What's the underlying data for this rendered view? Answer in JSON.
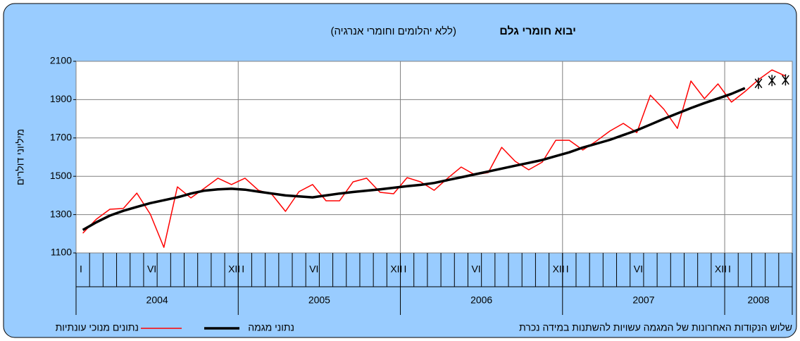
{
  "chart_data": {
    "type": "line",
    "title": "יבוא חומרי גלם",
    "subtitle": "(ללא יהלומים וחומרי אנרגיה)",
    "y_label": "מיליוני דולרים",
    "note": "שלוש הנקודות האחרונות של המגמה עשויות להשתנות במידה נכרת",
    "categories": [
      "I",
      null,
      null,
      null,
      null,
      "VI",
      null,
      null,
      null,
      null,
      null,
      "XII",
      "I",
      null,
      null,
      null,
      null,
      "VI",
      null,
      null,
      null,
      null,
      null,
      "XII",
      "I",
      null,
      null,
      null,
      null,
      "VI",
      null,
      null,
      null,
      null,
      null,
      "XII",
      "I",
      null,
      null,
      null,
      null,
      "VI",
      null,
      null,
      null,
      null,
      null,
      "XII",
      "I",
      null,
      null,
      null,
      null
    ],
    "years": [
      "2004",
      "2005",
      "2006",
      "2007",
      "2008"
    ],
    "ylim": [
      1100,
      2100
    ],
    "yticks": [
      1100,
      1300,
      1500,
      1700,
      1900,
      2100
    ],
    "grid": true,
    "series": [
      {
        "name": "נתונים מנוכי עונתיות",
        "color": "#ff0000",
        "width": 1.5,
        "values": [
          1203,
          1276,
          1328,
          1332,
          1412,
          1302,
          1129,
          1445,
          1387,
          1438,
          1490,
          1457,
          1490,
          1427,
          1405,
          1317,
          1420,
          1457,
          1372,
          1372,
          1471,
          1490,
          1416,
          1409,
          1493,
          1471,
          1427,
          1490,
          1548,
          1508,
          1519,
          1651,
          1578,
          1534,
          1574,
          1688,
          1688,
          1637,
          1684,
          1736,
          1776,
          1728,
          1923,
          1850,
          1750,
          1997,
          1905,
          1982,
          1887,
          1942,
          2004,
          2055,
          2023
        ]
      },
      {
        "name": "נתוני מגמה",
        "color": "#000000",
        "width": 3.5,
        "values": [
          1220,
          1260,
          1295,
          1320,
          1340,
          1360,
          1375,
          1390,
          1410,
          1425,
          1432,
          1435,
          1430,
          1420,
          1410,
          1400,
          1395,
          1390,
          1400,
          1410,
          1418,
          1425,
          1432,
          1440,
          1448,
          1455,
          1465,
          1480,
          1495,
          1510,
          1525,
          1540,
          1555,
          1570,
          1585,
          1605,
          1625,
          1650,
          1670,
          1690,
          1715,
          1740,
          1770,
          1800,
          1828,
          1856,
          1882,
          1906,
          1930,
          1960,
          null,
          null,
          null
        ]
      },
      {
        "color": "#000000",
        "marker": "asterisk",
        "values": [
          null,
          null,
          null,
          null,
          null,
          null,
          null,
          null,
          null,
          null,
          null,
          null,
          null,
          null,
          null,
          null,
          null,
          null,
          null,
          null,
          null,
          null,
          null,
          null,
          null,
          null,
          null,
          null,
          null,
          null,
          null,
          null,
          null,
          null,
          null,
          null,
          null,
          null,
          null,
          null,
          null,
          null,
          null,
          null,
          null,
          null,
          null,
          null,
          null,
          null,
          1985,
          2000,
          2003
        ]
      }
    ]
  }
}
